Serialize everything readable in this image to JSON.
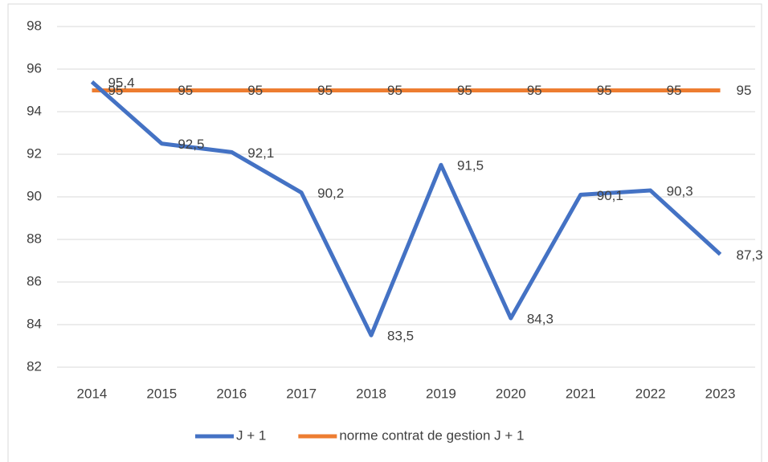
{
  "chart_data": {
    "type": "line",
    "categories": [
      "2014",
      "2015",
      "2016",
      "2017",
      "2018",
      "2019",
      "2020",
      "2021",
      "2022",
      "2023"
    ],
    "series": [
      {
        "name": "J + 1",
        "color": "#4472c4",
        "values": [
          95.4,
          92.5,
          92.1,
          90.2,
          83.5,
          91.5,
          84.3,
          90.1,
          90.3,
          87.3
        ],
        "value_labels": [
          "95,4",
          "92,5",
          "92,1",
          "90,2",
          "83,5",
          "91,5",
          "84,3",
          "90,1",
          "90,3",
          "87,3"
        ]
      },
      {
        "name": "norme contrat de gestion J + 1",
        "color": "#ed7d31",
        "values": [
          95,
          95,
          95,
          95,
          95,
          95,
          95,
          95,
          95,
          95
        ]
      }
    ],
    "ylim": [
      82,
      98
    ],
    "yticks": [
      82,
      84,
      86,
      88,
      90,
      92,
      94,
      96,
      98
    ],
    "grid": true,
    "legend": "bottom"
  }
}
